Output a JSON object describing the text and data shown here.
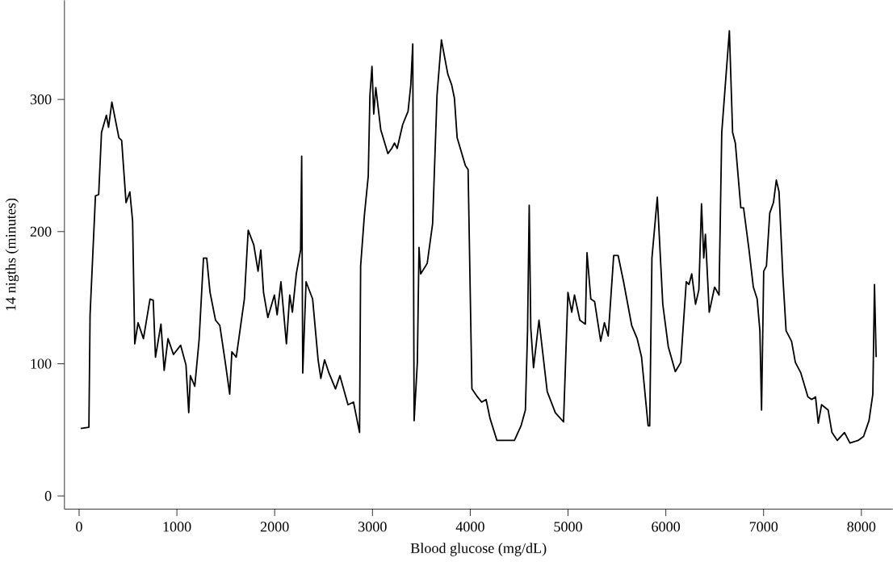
{
  "chart_data": {
    "type": "line",
    "xlabel": "Blood glucose (mg/dL)",
    "ylabel": "14 nigths (minutes)",
    "color": "#000000",
    "xlim": [
      -150,
      8320
    ],
    "ylim": [
      -10,
      375
    ],
    "xticks": [
      0,
      1000,
      2000,
      3000,
      4000,
      5000,
      6000,
      7000,
      8000
    ],
    "yticks": [
      0,
      100,
      200,
      300
    ],
    "grid": false,
    "x": [
      17,
      100,
      112,
      167,
      200,
      229,
      279,
      301,
      335,
      407,
      435,
      480,
      519,
      547,
      569,
      603,
      658,
      725,
      758,
      781,
      837,
      870,
      909,
      965,
      1038,
      1093,
      1121,
      1138,
      1183,
      1227,
      1272,
      1305,
      1339,
      1395,
      1439,
      1495,
      1540,
      1562,
      1607,
      1690,
      1729,
      1786,
      1830,
      1858,
      1886,
      1930,
      1997,
      2025,
      2064,
      2120,
      2154,
      2181,
      2221,
      2265,
      2276,
      2287,
      2321,
      2388,
      2444,
      2472,
      2510,
      2555,
      2622,
      2667,
      2750,
      2806,
      2868,
      2879,
      2917,
      2957,
      2974,
      2995,
      3013,
      3034,
      3085,
      3158,
      3197,
      3225,
      3253,
      3309,
      3364,
      3392,
      3412,
      3426,
      3459,
      3476,
      3493,
      3560,
      3615,
      3660,
      3705,
      3771,
      3810,
      3838,
      3866,
      3950,
      3978,
      4017,
      4073,
      4117,
      4162,
      4201,
      4273,
      4340,
      4452,
      4519,
      4564,
      4586,
      4603,
      4619,
      4647,
      4703,
      4787,
      4870,
      4954,
      4999,
      5038,
      5066,
      5121,
      5177,
      5194,
      5233,
      5272,
      5334,
      5372,
      5411,
      5467,
      5512,
      5568,
      5651,
      5707,
      5752,
      5819,
      5835,
      5858,
      5913,
      5969,
      6025,
      6097,
      6153,
      6209,
      6237,
      6265,
      6304,
      6338,
      6365,
      6388,
      6405,
      6444,
      6499,
      6544,
      6572,
      6650,
      6683,
      6711,
      6767,
      6795,
      6851,
      6895,
      6934,
      6962,
      6979,
      7001,
      7029,
      7063,
      7101,
      7130,
      7158,
      7197,
      7230,
      7286,
      7325,
      7381,
      7453,
      7492,
      7531,
      7559,
      7593,
      7660,
      7699,
      7754,
      7827,
      7883,
      7967,
      8022,
      8078,
      8117,
      8134,
      8151
    ],
    "values": [
      51,
      52,
      137,
      227,
      228,
      275,
      288,
      279,
      298,
      271,
      269,
      222,
      230,
      208,
      115,
      131,
      119,
      149,
      148,
      105,
      130,
      95,
      119,
      107,
      114,
      99,
      63,
      91,
      83,
      118,
      180,
      180,
      154,
      133,
      129,
      101,
      77,
      109,
      105,
      149,
      201,
      190,
      170,
      186,
      154,
      135,
      152,
      137,
      162,
      115,
      152,
      139,
      168,
      186,
      257,
      93,
      162,
      149,
      103,
      89,
      103,
      93,
      81,
      91,
      69,
      71,
      48,
      174,
      212,
      242,
      303,
      325,
      289,
      309,
      277,
      259,
      263,
      267,
      263,
      281,
      291,
      311,
      342,
      57,
      101,
      188,
      168,
      176,
      206,
      303,
      345,
      319,
      311,
      301,
      271,
      250,
      247,
      81,
      75,
      71,
      73,
      59,
      42,
      42,
      42,
      53,
      65,
      125,
      220,
      127,
      97,
      133,
      79,
      63,
      56,
      154,
      139,
      152,
      133,
      130,
      184,
      149,
      147,
      117,
      131,
      121,
      182,
      182,
      162,
      129,
      119,
      105,
      53,
      53,
      180,
      226,
      145,
      113,
      94,
      101,
      162,
      160,
      168,
      145,
      156,
      221,
      180,
      198,
      139,
      158,
      152,
      275,
      352,
      275,
      267,
      218,
      218,
      186,
      158,
      149,
      125,
      65,
      170,
      174,
      214,
      222,
      239,
      230,
      166,
      125,
      117,
      101,
      93,
      75,
      73,
      75,
      55,
      69,
      65,
      48,
      42,
      48,
      40,
      42,
      45,
      57,
      77,
      160,
      105
    ]
  }
}
